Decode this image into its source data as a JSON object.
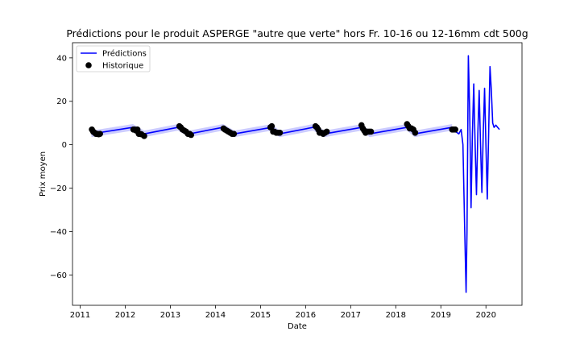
{
  "chart_data": {
    "type": "line",
    "title": "Prédictions pour le produit ASPERGE \"autre que verte\" hors Fr. 10-16 ou 12-16mm cdt 500g",
    "xlabel": "Date",
    "ylabel": "Prix moyen",
    "xlim": [
      2010.83,
      2020.8
    ],
    "ylim": [
      -74,
      47
    ],
    "xticks": [
      "2011",
      "2012",
      "2013",
      "2014",
      "2015",
      "2016",
      "2017",
      "2018",
      "2019",
      "2020"
    ],
    "yticks": [
      40,
      20,
      0,
      -20,
      -40,
      -60
    ],
    "legend": {
      "placement": "top-left",
      "entries": [
        "Prédictions",
        "Historique"
      ]
    },
    "colors": {
      "prediction": "#0000ff",
      "band": "#aaaaff",
      "history": "#000000"
    },
    "series": [
      {
        "name": "Prédictions",
        "style": "line",
        "x": [
          2011.25,
          2012.17,
          2012.42,
          2013.17,
          2013.42,
          2014.17,
          2014.42,
          2015.25,
          2015.42,
          2016.17,
          2016.42,
          2017.25,
          2017.42,
          2018.25,
          2018.42,
          2019.25,
          2019.33,
          2019.4,
          2019.45,
          2019.49,
          2019.53,
          2019.56,
          2019.58,
          2019.61,
          2019.64,
          2019.67,
          2019.7,
          2019.73,
          2019.76,
          2019.79,
          2019.82,
          2019.85,
          2019.88,
          2019.91,
          2019.94,
          2019.97,
          2020.0,
          2020.03,
          2020.06,
          2020.09,
          2020.12,
          2020.15,
          2020.18,
          2020.22,
          2020.26,
          2020.3
        ],
        "y": [
          5.0,
          8.0,
          5.0,
          8.0,
          5.0,
          8.0,
          5.0,
          8.0,
          5.0,
          8.0,
          5.0,
          8.0,
          5.0,
          8.0,
          5.0,
          8.0,
          6.0,
          5.0,
          7.0,
          0.0,
          -40.0,
          -68.0,
          -40.0,
          41.0,
          15.0,
          -29.0,
          5.0,
          28.0,
          0.0,
          -23.0,
          5.0,
          25.0,
          0.0,
          -22.0,
          5.0,
          26.0,
          0.0,
          -25.0,
          5.0,
          36.0,
          25.0,
          10.0,
          8.0,
          9.0,
          8.0,
          7.0
        ]
      },
      {
        "name": "Historique",
        "style": "scatter",
        "x": [
          2011.26,
          2011.29,
          2011.32,
          2011.35,
          2011.38,
          2011.41,
          2011.44,
          2012.18,
          2012.21,
          2012.24,
          2012.27,
          2012.3,
          2012.33,
          2012.36,
          2012.42,
          2013.2,
          2013.23,
          2013.27,
          2013.31,
          2013.35,
          2013.39,
          2013.43,
          2013.46,
          2014.18,
          2014.21,
          2014.25,
          2014.29,
          2014.33,
          2014.37,
          2014.41,
          2015.22,
          2015.25,
          2015.28,
          2015.31,
          2015.35,
          2015.39,
          2015.43,
          2016.22,
          2016.25,
          2016.28,
          2016.31,
          2016.35,
          2016.39,
          2016.43,
          2016.47,
          2017.24,
          2017.27,
          2017.3,
          2017.33,
          2017.37,
          2017.41,
          2017.45,
          2018.25,
          2018.28,
          2018.31,
          2018.35,
          2018.39,
          2018.43,
          2019.25,
          2019.28,
          2019.32
        ],
        "y": [
          7.0,
          6.0,
          5.5,
          5.0,
          5.0,
          4.8,
          5.0,
          7.0,
          7.0,
          6.5,
          7.0,
          5.0,
          5.0,
          4.8,
          4.0,
          8.5,
          8.0,
          7.0,
          6.5,
          6.0,
          5.0,
          5.0,
          4.5,
          7.5,
          7.0,
          6.5,
          6.0,
          5.5,
          5.0,
          5.0,
          8.0,
          8.5,
          6.0,
          6.0,
          5.5,
          5.5,
          5.5,
          8.5,
          8.0,
          7.0,
          5.5,
          5.5,
          5.0,
          5.5,
          6.0,
          9.0,
          7.5,
          6.5,
          5.5,
          6.0,
          6.0,
          6.0,
          9.5,
          8.5,
          7.5,
          7.5,
          7.0,
          5.5,
          7.0,
          7.0,
          7.0
        ]
      }
    ],
    "confidence_band": {
      "x": [
        2011.25,
        2019.25
      ],
      "width": 1.5
    }
  }
}
